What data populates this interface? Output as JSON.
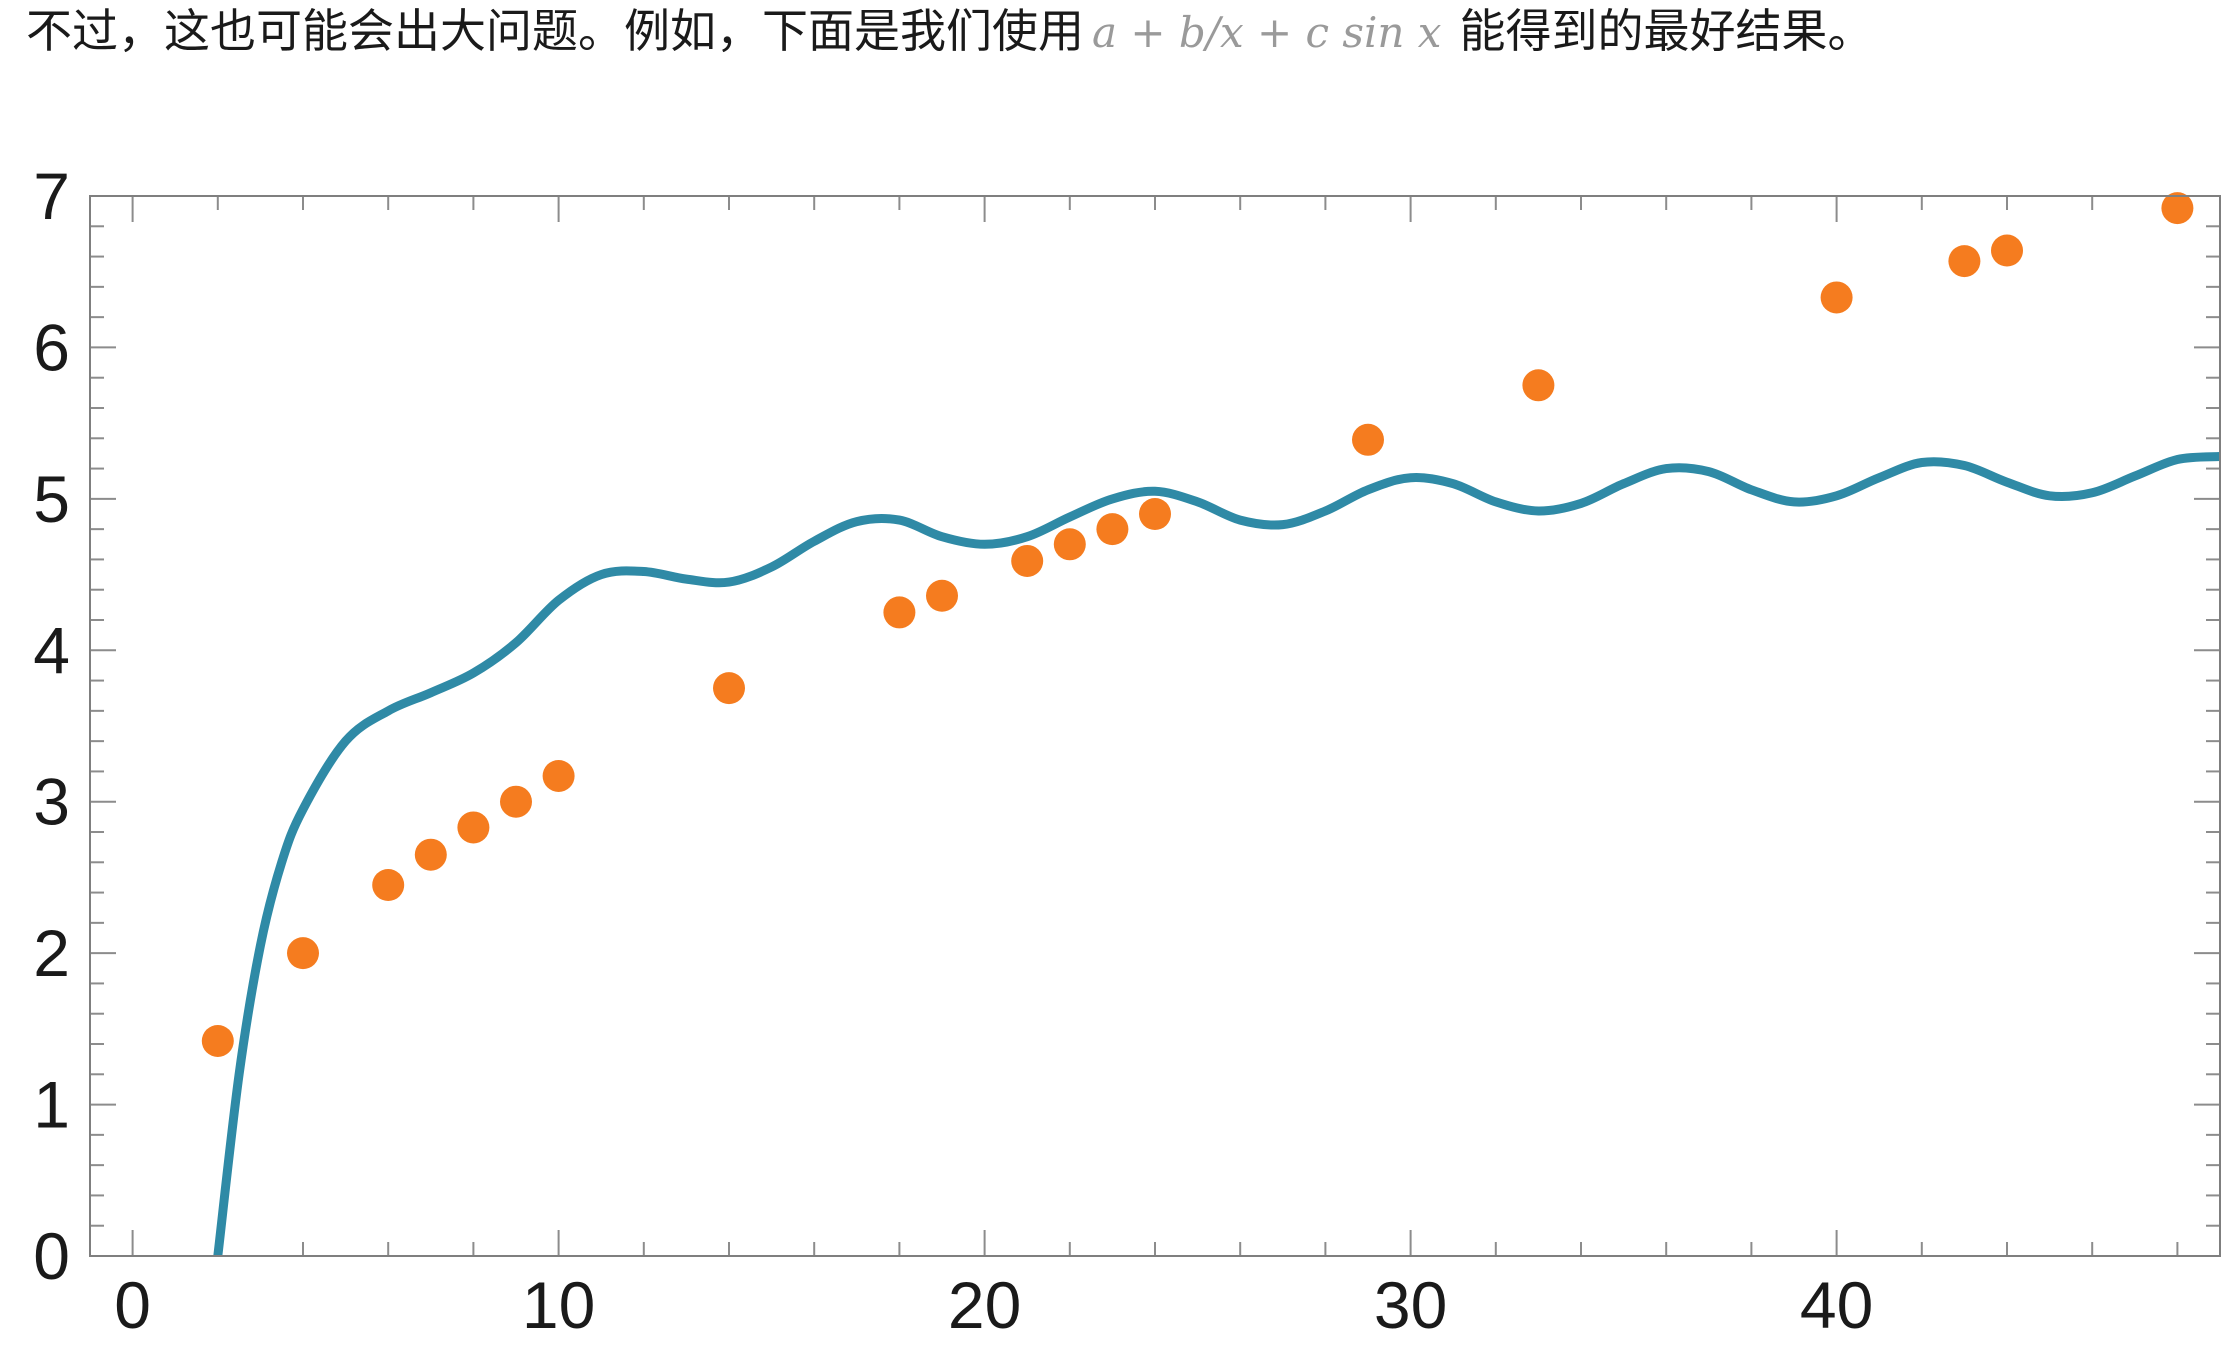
{
  "intro": {
    "text_before": "不过，这也可能会出大问题。例如，下面是我们使用",
    "formula": "a + b/x + c  sin x",
    "text_after": "能得到的最好结果。"
  },
  "colors": {
    "fit_curve": "#2f8aa6",
    "points": "#f57c1f",
    "frame": "#7f7f7f",
    "ticks": "#8c8c8c"
  },
  "chart_data": {
    "type": "scatter",
    "xlim": [
      -1,
      49
    ],
    "ylim": [
      0,
      7
    ],
    "x_ticks": [
      0,
      10,
      20,
      30,
      40
    ],
    "y_ticks": [
      0,
      1,
      2,
      3,
      4,
      5,
      6,
      7
    ],
    "grid": false,
    "points": {
      "x": [
        2,
        4,
        6,
        7,
        8,
        9,
        10,
        14,
        18,
        19,
        21,
        22,
        23,
        24,
        29,
        33,
        40,
        43,
        44,
        48
      ],
      "y": [
        1.42,
        2.0,
        2.45,
        2.65,
        2.83,
        3.0,
        3.17,
        3.75,
        4.25,
        4.36,
        4.59,
        4.7,
        4.8,
        4.9,
        5.39,
        5.75,
        6.33,
        6.57,
        6.64,
        6.92
      ]
    },
    "fit_curve": {
      "x": [
        2,
        2.5,
        3,
        3.5,
        4,
        5,
        6,
        7,
        8,
        9,
        10,
        11,
        12,
        13,
        14,
        15,
        16,
        17,
        18,
        19,
        20,
        21,
        22,
        23,
        24,
        25,
        26,
        27,
        28,
        29,
        30,
        31,
        32,
        33,
        34,
        35,
        36,
        37,
        38,
        39,
        40,
        41,
        42,
        43,
        44,
        45,
        46,
        47,
        48,
        49
      ],
      "y": [
        0.0,
        1.2,
        2.05,
        2.6,
        2.95,
        3.4,
        3.6,
        3.72,
        3.85,
        4.05,
        4.33,
        4.5,
        4.52,
        4.47,
        4.45,
        4.55,
        4.72,
        4.85,
        4.86,
        4.75,
        4.7,
        4.75,
        4.88,
        5.0,
        5.05,
        4.98,
        4.86,
        4.83,
        4.92,
        5.06,
        5.14,
        5.1,
        4.98,
        4.92,
        4.97,
        5.1,
        5.2,
        5.18,
        5.06,
        4.98,
        5.02,
        5.14,
        5.24,
        5.22,
        5.11,
        5.02,
        5.04,
        5.15,
        5.26,
        5.28
      ]
    }
  }
}
